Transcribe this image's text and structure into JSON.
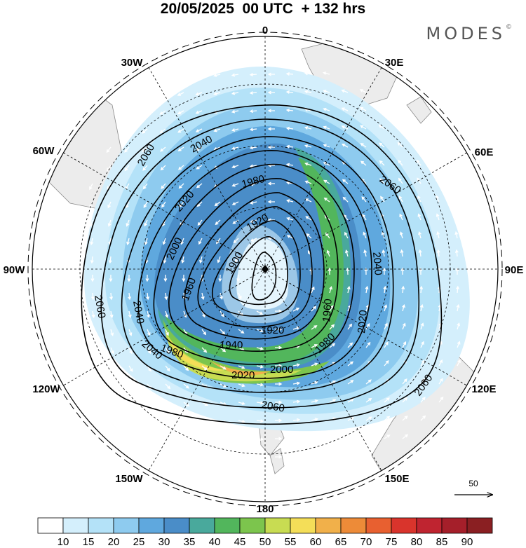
{
  "header": {
    "title": "20/05/2025  00 UTC  + 132 hrs",
    "brand": "MODES",
    "brand_mark": "©"
  },
  "map": {
    "projection": "south-polar-stereographic",
    "longitude_labels": [
      "0",
      "30E",
      "60E",
      "90E",
      "120E",
      "150E",
      "180",
      "150W",
      "120W",
      "90W",
      "60W",
      "30W"
    ],
    "contour_labels": [
      "1900",
      "1920",
      "1920",
      "1940",
      "1960",
      "1960",
      "1980",
      "1980",
      "1980",
      "2000",
      "2000",
      "2020",
      "2020",
      "2020",
      "2040",
      "2040",
      "2040",
      "2040",
      "2060",
      "2060",
      "2060",
      "2060",
      "2060"
    ],
    "reference_vector": {
      "value": "50"
    }
  },
  "colorbar": {
    "labels": [
      "10",
      "15",
      "20",
      "25",
      "30",
      "35",
      "40",
      "45",
      "50",
      "55",
      "60",
      "65",
      "70",
      "75",
      "80",
      "85",
      "90"
    ],
    "colors": [
      "#ffffff",
      "#d4effc",
      "#b4e2f8",
      "#8ecbef",
      "#5fa8de",
      "#4a8dc8",
      "#49a99c",
      "#52b65c",
      "#7cc54d",
      "#c8dc52",
      "#f4de58",
      "#f1b04a",
      "#ed8b38",
      "#e86030",
      "#d9342c",
      "#bf2430",
      "#a51f2a",
      "#8a1f22"
    ]
  }
}
